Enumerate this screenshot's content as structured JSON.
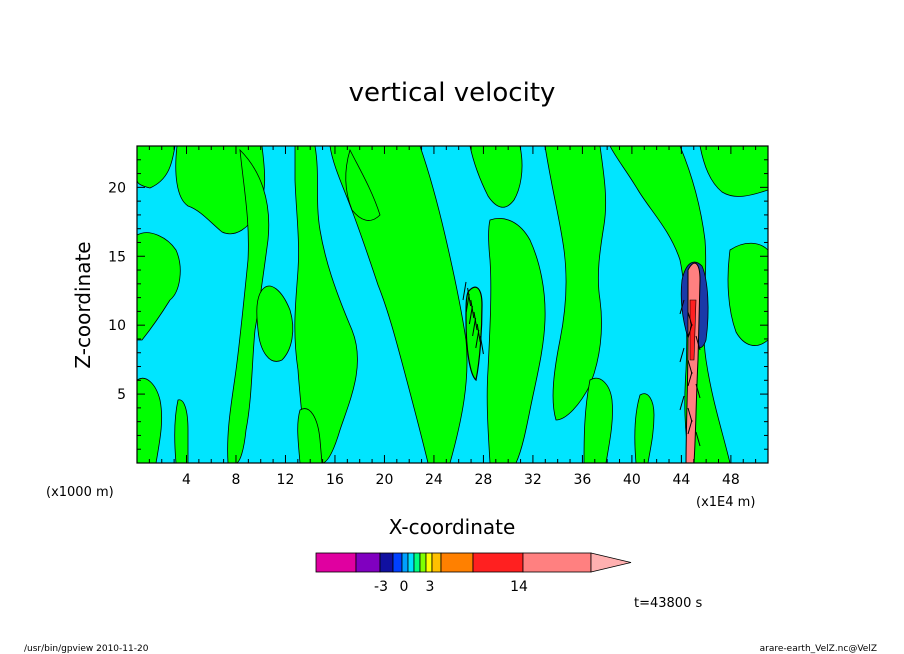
{
  "chart_data": {
    "type": "heatmap",
    "title": "vertical velocity",
    "xlabel": "X-coordinate",
    "ylabel": "Z-coordinate",
    "x_units_left": "(x1000 m)",
    "x_units_right": "(x1E4 m)",
    "x_ticks": [
      "4",
      "8",
      "12",
      "16",
      "20",
      "24",
      "28",
      "32",
      "36",
      "40",
      "44",
      "48"
    ],
    "x_tick_values": [
      4,
      8,
      12,
      16,
      20,
      24,
      28,
      32,
      36,
      40,
      44,
      48
    ],
    "xlim": [
      0,
      51
    ],
    "y_ticks": [
      "5",
      "10",
      "15",
      "20"
    ],
    "y_tick_values": [
      5,
      10,
      15,
      20
    ],
    "ylim": [
      0,
      23
    ],
    "colorbar": {
      "labels": [
        "-3",
        "0",
        "3",
        "14"
      ],
      "colors": [
        "#e000a0",
        "#8000c0",
        "#1010a0",
        "#0040ff",
        "#00a0ff",
        "#00e0ff",
        "#00ff80",
        "#80ff00",
        "#ffff00",
        "#ffc000",
        "#ff8000",
        "#ff2020",
        "#ff8080",
        "#ffb0b0"
      ]
    },
    "background_color": "#00e5ff",
    "positive_color": "#00ff00",
    "timestamp": "t=43800 s",
    "footer_left": "/usr/bin/gpview   2010-11-20",
    "footer_right": "arare-earth_VelZ.nc@VelZ"
  }
}
